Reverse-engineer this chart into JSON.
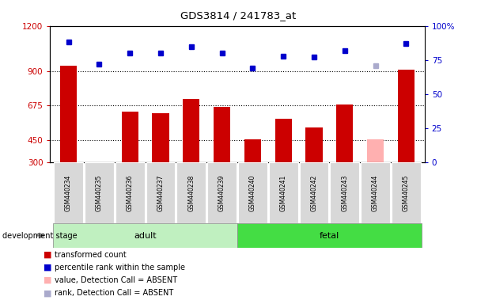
{
  "title": "GDS3814 / 241783_at",
  "categories": [
    "GSM440234",
    "GSM440235",
    "GSM440236",
    "GSM440237",
    "GSM440238",
    "GSM440239",
    "GSM440240",
    "GSM440241",
    "GSM440242",
    "GSM440243",
    "GSM440244",
    "GSM440245"
  ],
  "bar_values": [
    940,
    300,
    635,
    625,
    720,
    665,
    455,
    590,
    530,
    680,
    455,
    910
  ],
  "bar_absent": [
    false,
    false,
    false,
    false,
    false,
    false,
    false,
    false,
    false,
    false,
    true,
    false
  ],
  "rank_values": [
    88,
    72,
    80,
    80,
    85,
    80,
    69,
    78,
    77,
    82,
    71,
    87
  ],
  "rank_absent": [
    false,
    false,
    false,
    false,
    false,
    false,
    false,
    false,
    false,
    false,
    true,
    false
  ],
  "bar_color": "#cc0000",
  "bar_absent_color": "#ffb0b0",
  "rank_color": "#0000cc",
  "rank_absent_color": "#aaaacc",
  "ymin": 300,
  "ymax": 1200,
  "y2min": 0,
  "y2max": 100,
  "yticks": [
    300,
    450,
    675,
    900,
    1200
  ],
  "ytick_labels": [
    "300",
    "450",
    "675",
    "900",
    "1200"
  ],
  "y2ticks": [
    0,
    25,
    50,
    75,
    100
  ],
  "y2tick_labels": [
    "0",
    "25",
    "50",
    "75",
    "100%"
  ],
  "hlines": [
    450,
    675,
    900
  ],
  "adult_count": 6,
  "adult_label": "adult",
  "fetal_label": "fetal",
  "adult_color": "#c0f0c0",
  "fetal_color": "#44dd44",
  "stage_label": "development stage",
  "legend_items": [
    {
      "label": "transformed count",
      "color": "#cc0000"
    },
    {
      "label": "percentile rank within the sample",
      "color": "#0000cc"
    },
    {
      "label": "value, Detection Call = ABSENT",
      "color": "#ffb0b0"
    },
    {
      "label": "rank, Detection Call = ABSENT",
      "color": "#aaaacc"
    }
  ],
  "bar_width": 0.55
}
